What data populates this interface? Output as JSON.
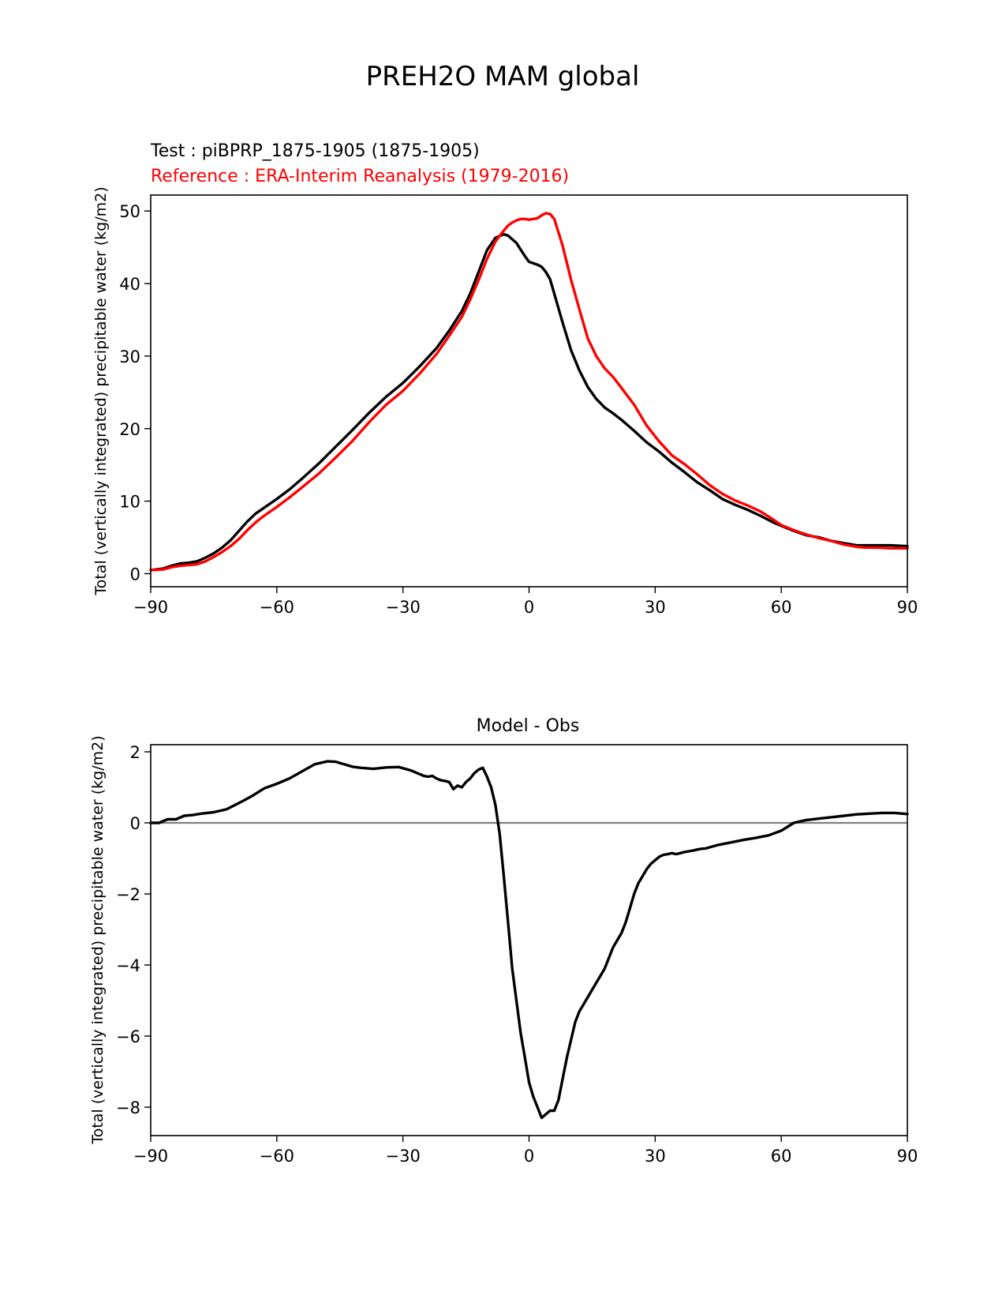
{
  "figure": {
    "title": "PREH2O MAM global"
  },
  "chart_data": [
    {
      "type": "line",
      "test_label": "Test : piBPRP_1875-1905 (1875-1905)",
      "reference_label": "Reference : ERA-Interim Reanalysis (1979-2016)",
      "xlabel": "",
      "ylabel": "Total (vertically integrated) precipitable water (kg/m2)",
      "xlim": [
        -90,
        90
      ],
      "ylim": [
        -1.8,
        52.2
      ],
      "xticks": [
        -90,
        -60,
        -30,
        0,
        30,
        60,
        90
      ],
      "xtick_labels": [
        "−90",
        "−60",
        "−30",
        "0",
        "30",
        "60",
        "90"
      ],
      "yticks": [
        0,
        10,
        20,
        30,
        40,
        50
      ],
      "ytick_labels": [
        "0",
        "10",
        "20",
        "30",
        "40",
        "50"
      ],
      "series": [
        {
          "name": "Test",
          "color": "#000000",
          "x": [
            -90,
            -87,
            -85,
            -83,
            -81,
            -79,
            -77,
            -75,
            -73,
            -71,
            -69,
            -67,
            -65,
            -63,
            -60,
            -57,
            -54,
            -50,
            -46,
            -42,
            -38,
            -34,
            -30,
            -26,
            -22,
            -19,
            -16,
            -14,
            -12,
            -10,
            -8,
            -6,
            -5,
            -4,
            -3,
            -2,
            -1,
            0,
            2,
            3,
            4,
            5,
            6,
            8,
            10,
            12,
            14,
            16,
            18,
            20,
            22,
            25,
            28,
            31,
            34,
            37,
            40,
            43,
            46,
            49,
            52,
            55,
            58,
            60,
            63,
            66,
            69,
            72,
            75,
            78,
            80,
            83,
            86,
            90
          ],
          "values": [
            0.5,
            0.7,
            1.1,
            1.4,
            1.5,
            1.7,
            2.2,
            2.8,
            3.6,
            4.6,
            5.9,
            7.2,
            8.3,
            9.1,
            10.3,
            11.6,
            13.1,
            15.2,
            17.5,
            19.8,
            22.2,
            24.4,
            26.3,
            28.6,
            31.1,
            33.5,
            36.2,
            38.6,
            41.6,
            44.6,
            46.3,
            46.8,
            46.6,
            46.1,
            45.6,
            44.7,
            43.8,
            43.0,
            42.6,
            42.3,
            41.6,
            40.6,
            38.6,
            34.6,
            30.8,
            28.0,
            25.7,
            24.1,
            22.9,
            22.1,
            21.2,
            19.7,
            18.1,
            16.8,
            15.3,
            14.0,
            12.6,
            11.5,
            10.3,
            9.5,
            8.8,
            8.0,
            7.1,
            6.6,
            5.9,
            5.3,
            5.0,
            4.5,
            4.2,
            3.9,
            3.9,
            3.9,
            3.9,
            3.8
          ]
        },
        {
          "name": "Reference",
          "color": "#ff0000",
          "x": [
            -90,
            -87,
            -85,
            -83,
            -81,
            -79,
            -77,
            -75,
            -73,
            -71,
            -69,
            -67,
            -65,
            -63,
            -60,
            -57,
            -54,
            -50,
            -46,
            -42,
            -38,
            -34,
            -30,
            -26,
            -22,
            -19,
            -16,
            -14,
            -12,
            -10,
            -8,
            -6,
            -5,
            -4,
            -3,
            -2,
            -1,
            0,
            2,
            3,
            4,
            5,
            6,
            8,
            10,
            12,
            14,
            16,
            18,
            20,
            22,
            25,
            28,
            31,
            34,
            37,
            40,
            43,
            46,
            49,
            52,
            55,
            58,
            60,
            63,
            66,
            69,
            72,
            75,
            78,
            80,
            83,
            86,
            90
          ],
          "values": [
            0.5,
            0.6,
            0.9,
            1.1,
            1.2,
            1.3,
            1.7,
            2.3,
            3.0,
            3.8,
            4.8,
            6.0,
            7.1,
            8.0,
            9.2,
            10.5,
            11.9,
            13.8,
            16.0,
            18.3,
            20.9,
            23.3,
            25.2,
            27.6,
            30.3,
            32.8,
            35.4,
            37.8,
            40.5,
            43.4,
            45.8,
            47.3,
            48.0,
            48.4,
            48.7,
            48.9,
            48.9,
            48.8,
            49.0,
            49.4,
            49.7,
            49.6,
            48.9,
            45.2,
            40.5,
            36.4,
            32.4,
            30.0,
            28.3,
            27.1,
            25.6,
            23.3,
            20.4,
            18.2,
            16.3,
            15.1,
            13.7,
            12.2,
            11.0,
            10.1,
            9.4,
            8.6,
            7.5,
            6.7,
            6.0,
            5.4,
            4.9,
            4.5,
            4.0,
            3.7,
            3.6,
            3.6,
            3.5,
            3.5
          ]
        }
      ]
    },
    {
      "type": "line",
      "title": "Model - Obs",
      "xlabel": "",
      "ylabel": "Total (vertically integrated) precipitable water (kg/m2)",
      "xlim": [
        -90,
        90
      ],
      "ylim": [
        -8.8,
        2.2
      ],
      "xticks": [
        -90,
        -60,
        -30,
        0,
        30,
        60,
        90
      ],
      "xtick_labels": [
        "−90",
        "−60",
        "−30",
        "0",
        "30",
        "60",
        "90"
      ],
      "yticks": [
        -8,
        -6,
        -4,
        -2,
        0,
        2
      ],
      "ytick_labels": [
        "−8",
        "−6",
        "−4",
        "−2",
        "0",
        "2"
      ],
      "zero_line_color": "#808080",
      "series": [
        {
          "name": "Model - Obs",
          "color": "#000000",
          "x": [
            -90,
            -88,
            -86,
            -84,
            -82,
            -80,
            -78,
            -75,
            -72,
            -70,
            -68,
            -66,
            -63,
            -60,
            -57,
            -54,
            -51,
            -48,
            -46,
            -44,
            -42,
            -40,
            -37,
            -34,
            -31,
            -28,
            -25,
            -24,
            -23,
            -22,
            -21,
            -20,
            -19,
            -18,
            -17,
            -16,
            -15,
            -14,
            -13,
            -12,
            -11,
            -10,
            -9,
            -8,
            -7,
            -6,
            -5,
            -4,
            -3,
            -2,
            -1,
            0,
            1,
            2,
            3,
            4,
            5,
            6,
            7,
            8,
            9,
            10,
            11,
            12,
            13,
            14,
            15,
            16,
            17,
            18,
            19,
            20,
            21,
            22,
            23,
            24,
            25,
            26,
            27,
            28,
            29,
            30,
            31,
            32,
            33,
            34,
            35,
            36,
            37,
            38,
            39,
            40,
            41,
            42,
            45,
            48,
            51,
            54,
            57,
            60,
            63,
            66,
            69,
            72,
            75,
            78,
            81,
            84,
            87,
            90
          ],
          "values": [
            0.0,
            0.0,
            0.1,
            0.1,
            0.2,
            0.22,
            0.26,
            0.3,
            0.38,
            0.5,
            0.62,
            0.75,
            0.97,
            1.1,
            1.25,
            1.45,
            1.65,
            1.73,
            1.72,
            1.65,
            1.58,
            1.55,
            1.52,
            1.56,
            1.57,
            1.47,
            1.32,
            1.3,
            1.32,
            1.25,
            1.2,
            1.18,
            1.15,
            0.95,
            1.05,
            1.0,
            1.15,
            1.25,
            1.4,
            1.5,
            1.55,
            1.3,
            1.0,
            0.5,
            -0.3,
            -1.5,
            -2.8,
            -4.1,
            -5.0,
            -5.9,
            -6.6,
            -7.3,
            -7.7,
            -8.0,
            -8.3,
            -8.2,
            -8.1,
            -8.1,
            -7.8,
            -7.2,
            -6.6,
            -6.1,
            -5.6,
            -5.3,
            -5.1,
            -4.9,
            -4.7,
            -4.5,
            -4.3,
            -4.1,
            -3.8,
            -3.5,
            -3.3,
            -3.1,
            -2.8,
            -2.4,
            -2.0,
            -1.7,
            -1.5,
            -1.3,
            -1.15,
            -1.05,
            -0.95,
            -0.9,
            -0.88,
            -0.85,
            -0.88,
            -0.85,
            -0.82,
            -0.8,
            -0.78,
            -0.75,
            -0.73,
            -0.72,
            -0.62,
            -0.55,
            -0.48,
            -0.42,
            -0.35,
            -0.22,
            0.0,
            0.08,
            0.12,
            0.16,
            0.2,
            0.24,
            0.26,
            0.28,
            0.28,
            0.25
          ]
        }
      ]
    }
  ]
}
